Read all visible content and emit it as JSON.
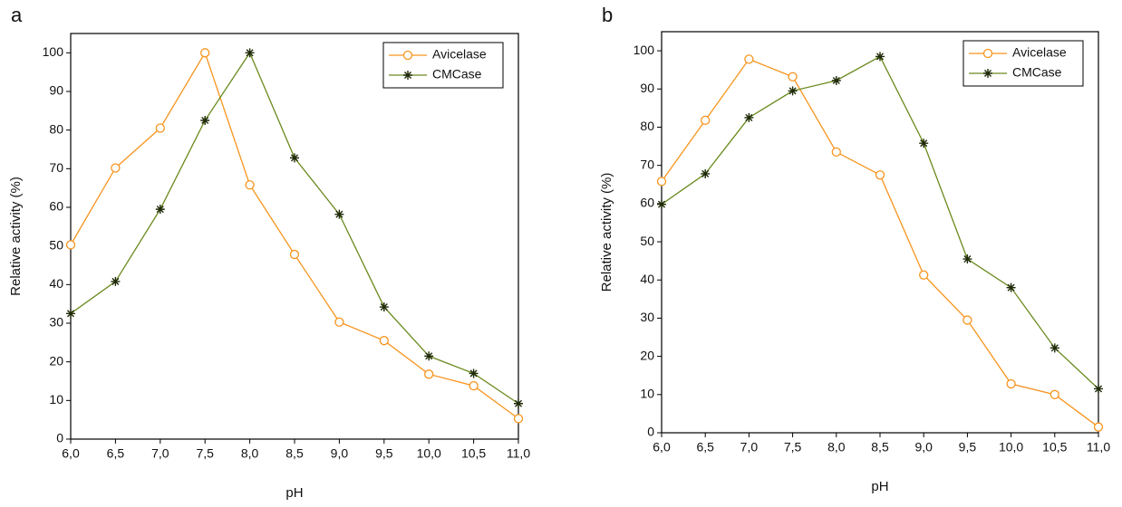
{
  "chart_data": [
    {
      "type": "line",
      "title": "a",
      "x_label": "pH",
      "y_label": "Relative activity (%)",
      "x": [
        6,
        6.5,
        7,
        7.5,
        8,
        8.5,
        9,
        9.5,
        10,
        10.5,
        11
      ],
      "series": [
        {
          "name": "Avicelase",
          "color": "#f7941d",
          "marker": "circle",
          "values": [
            50.3,
            70.2,
            80.5,
            100,
            65.8,
            47.8,
            30.3,
            25.5,
            16.8,
            13.8,
            5.3
          ]
        },
        {
          "name": "CMCase",
          "color": "#6b8a1f",
          "marker": "star",
          "values": [
            32.5,
            40.8,
            59.5,
            82.5,
            100,
            72.8,
            58.2,
            34.2,
            21.5,
            17,
            9.2
          ]
        }
      ],
      "xlim": [
        6,
        11
      ],
      "ylim": [
        0,
        105
      ],
      "xticks": [
        {
          "value": 6,
          "label": "6,0"
        },
        {
          "value": 6.5,
          "label": "6,5"
        },
        {
          "value": 7,
          "label": "7,0"
        },
        {
          "value": 7.5,
          "label": "7,5"
        },
        {
          "value": 8,
          "label": "8,0"
        },
        {
          "value": 8.5,
          "label": "8,5"
        },
        {
          "value": 9,
          "label": "9,0"
        },
        {
          "value": 9.5,
          "label": "9,5"
        },
        {
          "value": 10,
          "label": "10,0"
        },
        {
          "value": 10.5,
          "label": "10,5"
        },
        {
          "value": 11,
          "label": "11,0"
        }
      ],
      "yticks": [
        0,
        10,
        20,
        30,
        40,
        50,
        60,
        70,
        80,
        90,
        100
      ],
      "legend": "upper right"
    },
    {
      "type": "line",
      "title": "b",
      "x_label": "pH",
      "y_label": "Relative activity (%)",
      "x": [
        6,
        6.5,
        7,
        7.5,
        8,
        8.5,
        9,
        9.5,
        10,
        10.5,
        11
      ],
      "series": [
        {
          "name": "Avicelase",
          "color": "#f7941d",
          "marker": "circle",
          "values": [
            65.8,
            81.8,
            97.8,
            93.2,
            73.5,
            67.5,
            41.3,
            29.5,
            12.8,
            10,
            1.5
          ]
        },
        {
          "name": "CMCase",
          "color": "#6b8a1f",
          "marker": "star",
          "values": [
            59.8,
            67.8,
            82.5,
            89.5,
            92.2,
            98.5,
            75.8,
            45.5,
            38,
            22.2,
            11.5
          ]
        }
      ],
      "xlim": [
        6,
        11
      ],
      "ylim": [
        0,
        105
      ],
      "xticks": [
        {
          "value": 6,
          "label": "6,0"
        },
        {
          "value": 6.5,
          "label": "6,5"
        },
        {
          "value": 7,
          "label": "7,0"
        },
        {
          "value": 7.5,
          "label": "7,5"
        },
        {
          "value": 8,
          "label": "8,0"
        },
        {
          "value": 8.5,
          "label": "8,5"
        },
        {
          "value": 9,
          "label": "9,0"
        },
        {
          "value": 9.5,
          "label": "9,5"
        },
        {
          "value": 10,
          "label": "10,0"
        },
        {
          "value": 10.5,
          "label": "10,5"
        },
        {
          "value": 11,
          "label": "11,0"
        }
      ],
      "yticks": [
        0,
        10,
        20,
        30,
        40,
        50,
        60,
        70,
        80,
        90,
        100
      ],
      "legend": "upper right"
    }
  ]
}
